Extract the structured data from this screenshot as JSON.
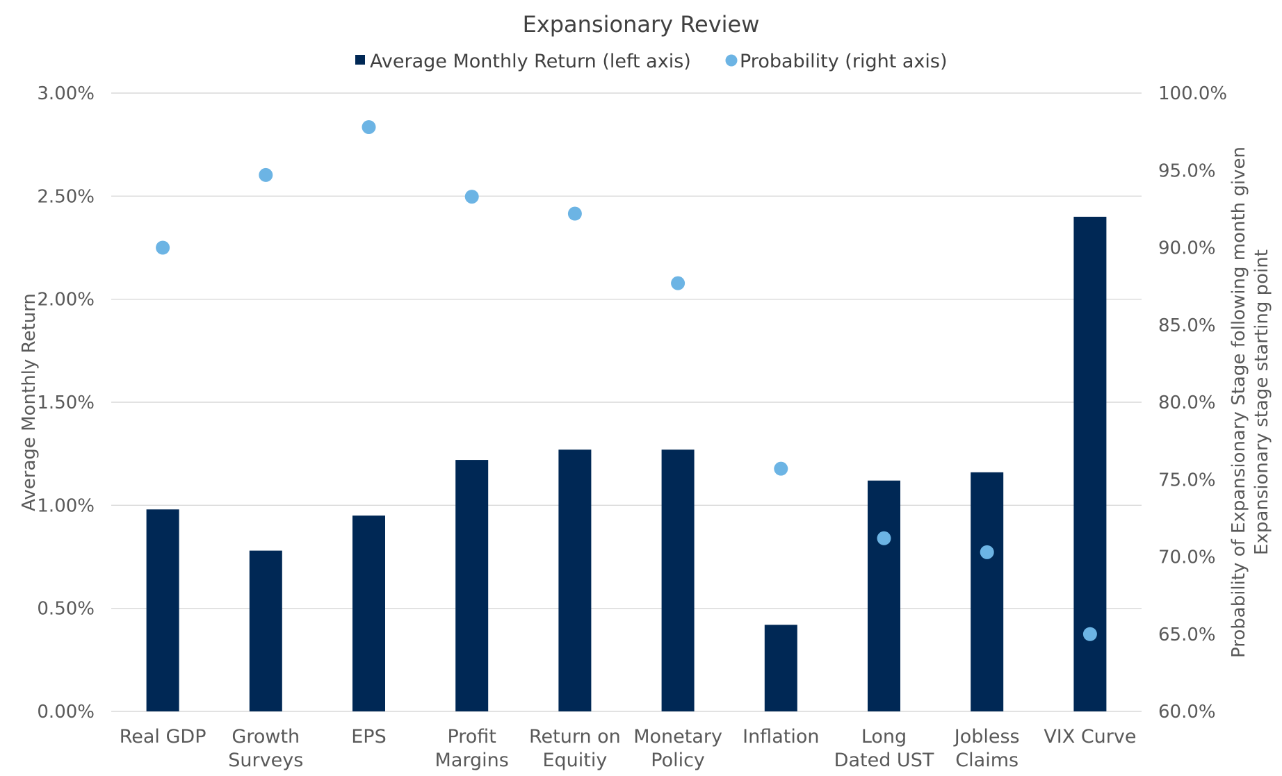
{
  "chart_data": {
    "type": "bar",
    "title": "Expansionary Review",
    "categories": [
      [
        "Real GDP"
      ],
      [
        "Growth",
        "Surveys"
      ],
      [
        "EPS"
      ],
      [
        "Profit",
        "Margins"
      ],
      [
        "Return on",
        "Equitiy"
      ],
      [
        "Monetary",
        "Policy"
      ],
      [
        "Inflation"
      ],
      [
        "Long",
        "Dated UST"
      ],
      [
        "Jobless",
        "Claims"
      ],
      [
        "VIX Curve"
      ]
    ],
    "series": [
      {
        "name": "Average Monthly Return (left axis)",
        "type": "bar",
        "axis": "left",
        "color": "#002855",
        "values": [
          0.98,
          0.78,
          0.95,
          1.22,
          1.27,
          1.27,
          0.42,
          1.12,
          1.16,
          2.4
        ]
      },
      {
        "name": "Probability (right axis)",
        "type": "scatter",
        "axis": "right",
        "color": "#6cb4e4",
        "values": [
          90.0,
          94.7,
          97.8,
          93.3,
          92.2,
          87.7,
          75.7,
          71.2,
          70.3,
          65.0
        ]
      }
    ],
    "left_axis": {
      "label": "Average Monthly Return",
      "ylim": [
        0,
        3
      ],
      "ticks": [
        0,
        0.5,
        1.0,
        1.5,
        2.0,
        2.5,
        3.0
      ],
      "tick_labels": [
        "0.00%",
        "0.50%",
        "1.00%",
        "1.50%",
        "2.00%",
        "2.50%",
        "3.00%"
      ]
    },
    "right_axis": {
      "label_lines": [
        "Probability of Expansionary Stage following month given",
        "Expansionary stage starting point"
      ],
      "ylim": [
        60,
        100
      ],
      "ticks": [
        60,
        65,
        70,
        75,
        80,
        85,
        90,
        95,
        100
      ],
      "tick_labels": [
        "60.0%",
        "65.0%",
        "70.0%",
        "75.0%",
        "80.0%",
        "85.0%",
        "90.0%",
        "95.0%",
        "100.0%"
      ]
    },
    "grid": true,
    "legend_position": "top-center"
  }
}
